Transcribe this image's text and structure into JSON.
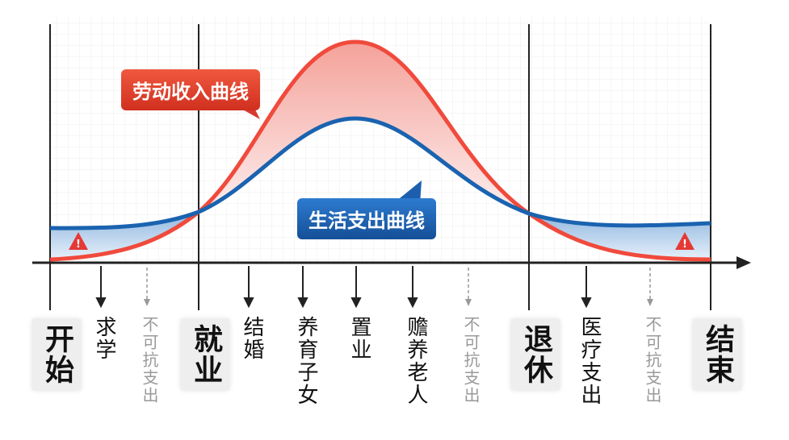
{
  "curves": {
    "income_label": "劳动收入曲线",
    "expense_label": "生活支出曲线"
  },
  "stages": [
    "开始",
    "就业",
    "退休",
    "结束"
  ],
  "events": [
    "求学",
    "不可抗支出",
    "结婚",
    "养育子女",
    "置业",
    "赡养老人",
    "不可抗支出",
    "医疗支出",
    "不可抗支出"
  ]
}
